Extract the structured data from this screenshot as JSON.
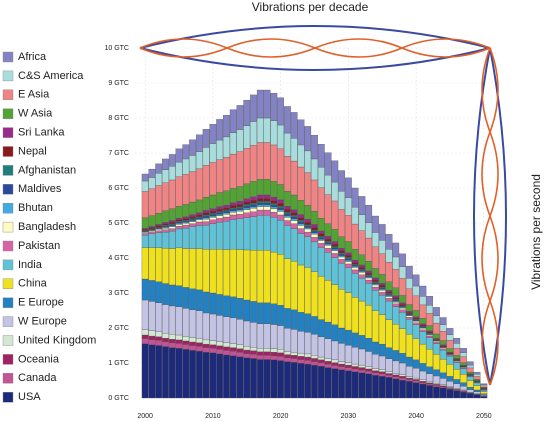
{
  "chart_data": {
    "type": "stacked-bar",
    "annotations": [
      "Vibrations per decade",
      "Vibrations per second"
    ],
    "x": [
      2000,
      2001,
      2002,
      2003,
      2004,
      2005,
      2006,
      2007,
      2008,
      2009,
      2010,
      2011,
      2012,
      2013,
      2014,
      2015,
      2016,
      2017,
      2018,
      2019,
      2020,
      2021,
      2022,
      2023,
      2024,
      2025,
      2026,
      2027,
      2028,
      2029,
      2030,
      2031,
      2032,
      2033,
      2034,
      2035,
      2036,
      2037,
      2038,
      2039,
      2040,
      2041,
      2042,
      2043,
      2044,
      2045,
      2046,
      2047,
      2048,
      2049,
      2050
    ],
    "xlim": [
      1998.5,
      2051.5
    ],
    "xticks": [
      2000,
      2010,
      2020,
      2030,
      2040,
      2050
    ],
    "ylim": [
      0,
      10
    ],
    "yticks": [
      {
        "value": 0,
        "label": "0 GTC"
      },
      {
        "value": 1,
        "label": "1 GTC"
      },
      {
        "value": 2,
        "label": "2 GTC"
      },
      {
        "value": 3,
        "label": "3 GTC"
      },
      {
        "value": 4,
        "label": "4 GTC"
      },
      {
        "value": 5,
        "label": "5 GTC"
      },
      {
        "value": 6,
        "label": "6 GTC"
      },
      {
        "value": 7,
        "label": "7 GTC"
      },
      {
        "value": 8,
        "label": "8 GTC"
      },
      {
        "value": 9,
        "label": "9 GTC"
      },
      {
        "value": 10,
        "label": "10 GTC"
      }
    ],
    "grid": true,
    "legend": "left",
    "series": [
      {
        "name": "Africa",
        "color": "#8383c4",
        "values": [
          0.2,
          0.24,
          0.27,
          0.31,
          0.34,
          0.38,
          0.41,
          0.45,
          0.48,
          0.52,
          0.55,
          0.59,
          0.62,
          0.66,
          0.69,
          0.73,
          0.76,
          0.8,
          0.8,
          0.79,
          0.78,
          0.76,
          0.74,
          0.72,
          0.7,
          0.68,
          0.66,
          0.64,
          0.61,
          0.59,
          0.57,
          0.55,
          0.52,
          0.5,
          0.47,
          0.45,
          0.43,
          0.4,
          0.37,
          0.35,
          0.32,
          0.29,
          0.26,
          0.24,
          0.21,
          0.18,
          0.15,
          0.13,
          0.1,
          0.06,
          0.03
        ]
      },
      {
        "name": "C&S America",
        "color": "#a9dcdc",
        "values": [
          0.3,
          0.32,
          0.35,
          0.37,
          0.39,
          0.42,
          0.44,
          0.46,
          0.49,
          0.51,
          0.54,
          0.56,
          0.58,
          0.61,
          0.63,
          0.65,
          0.68,
          0.7,
          0.7,
          0.69,
          0.68,
          0.66,
          0.65,
          0.63,
          0.62,
          0.6,
          0.58,
          0.56,
          0.54,
          0.52,
          0.5,
          0.48,
          0.46,
          0.44,
          0.41,
          0.39,
          0.37,
          0.35,
          0.33,
          0.3,
          0.28,
          0.25,
          0.23,
          0.21,
          0.18,
          0.16,
          0.14,
          0.11,
          0.08,
          0.06,
          0.03
        ]
      },
      {
        "name": "E Asia",
        "color": "#f08484",
        "values": [
          0.75,
          0.77,
          0.79,
          0.8,
          0.82,
          0.84,
          0.86,
          0.87,
          0.89,
          0.91,
          0.93,
          0.94,
          0.96,
          0.98,
          1.0,
          1.01,
          1.03,
          1.05,
          1.05,
          1.04,
          1.02,
          1.0,
          0.97,
          0.95,
          0.93,
          0.89,
          0.87,
          0.83,
          0.81,
          0.78,
          0.75,
          0.72,
          0.69,
          0.66,
          0.62,
          0.59,
          0.56,
          0.53,
          0.49,
          0.45,
          0.42,
          0.38,
          0.35,
          0.31,
          0.27,
          0.24,
          0.2,
          0.17,
          0.12,
          0.08,
          0.04
        ]
      },
      {
        "name": "W Asia",
        "color": "#52a234",
        "values": [
          0.3,
          0.31,
          0.32,
          0.33,
          0.34,
          0.34,
          0.35,
          0.36,
          0.37,
          0.38,
          0.39,
          0.4,
          0.41,
          0.41,
          0.42,
          0.43,
          0.44,
          0.45,
          0.45,
          0.45,
          0.44,
          0.43,
          0.42,
          0.41,
          0.4,
          0.38,
          0.37,
          0.36,
          0.35,
          0.33,
          0.32,
          0.31,
          0.29,
          0.28,
          0.27,
          0.25,
          0.24,
          0.23,
          0.21,
          0.19,
          0.18,
          0.16,
          0.15,
          0.13,
          0.12,
          0.1,
          0.09,
          0.07,
          0.05,
          0.04,
          0.02
        ]
      },
      {
        "name": "Sri Lanka",
        "color": "#9a2a8c",
        "values": [
          0.03,
          0.03,
          0.04,
          0.04,
          0.05,
          0.05,
          0.05,
          0.06,
          0.06,
          0.07,
          0.07,
          0.08,
          0.08,
          0.08,
          0.09,
          0.09,
          0.1,
          0.1,
          0.1,
          0.1,
          0.1,
          0.09,
          0.09,
          0.09,
          0.09,
          0.09,
          0.08,
          0.08,
          0.08,
          0.07,
          0.07,
          0.07,
          0.07,
          0.06,
          0.06,
          0.06,
          0.05,
          0.05,
          0.05,
          0.04,
          0.04,
          0.04,
          0.03,
          0.03,
          0.03,
          0.02,
          0.02,
          0.02,
          0.01,
          0.01,
          0.01
        ]
      },
      {
        "name": "Nepal",
        "color": "#8a1a1c",
        "values": [
          0.03,
          0.03,
          0.04,
          0.04,
          0.04,
          0.04,
          0.05,
          0.05,
          0.05,
          0.06,
          0.06,
          0.06,
          0.06,
          0.07,
          0.07,
          0.07,
          0.08,
          0.08,
          0.08,
          0.08,
          0.08,
          0.08,
          0.07,
          0.07,
          0.07,
          0.07,
          0.07,
          0.06,
          0.06,
          0.06,
          0.06,
          0.05,
          0.05,
          0.05,
          0.05,
          0.05,
          0.04,
          0.04,
          0.04,
          0.03,
          0.03,
          0.03,
          0.03,
          0.02,
          0.02,
          0.02,
          0.02,
          0.01,
          0.01,
          0.01,
          0.01
        ]
      },
      {
        "name": "Afghanistan",
        "color": "#1f7f7c",
        "values": [
          0.02,
          0.02,
          0.02,
          0.03,
          0.03,
          0.03,
          0.03,
          0.03,
          0.03,
          0.04,
          0.04,
          0.04,
          0.04,
          0.04,
          0.04,
          0.05,
          0.05,
          0.05,
          0.05,
          0.05,
          0.05,
          0.05,
          0.05,
          0.05,
          0.04,
          0.04,
          0.04,
          0.04,
          0.04,
          0.04,
          0.04,
          0.03,
          0.03,
          0.03,
          0.03,
          0.03,
          0.03,
          0.03,
          0.02,
          0.02,
          0.02,
          0.02,
          0.02,
          0.01,
          0.01,
          0.01,
          0.01,
          0.01,
          0.01,
          0.01,
          0.01
        ]
      },
      {
        "name": "Maldives",
        "color": "#2b4a9c",
        "values": [
          0.02,
          0.02,
          0.02,
          0.03,
          0.03,
          0.03,
          0.03,
          0.03,
          0.03,
          0.04,
          0.04,
          0.04,
          0.04,
          0.04,
          0.04,
          0.05,
          0.05,
          0.05,
          0.05,
          0.05,
          0.05,
          0.05,
          0.05,
          0.05,
          0.04,
          0.04,
          0.04,
          0.04,
          0.04,
          0.04,
          0.04,
          0.03,
          0.03,
          0.03,
          0.03,
          0.03,
          0.03,
          0.03,
          0.02,
          0.02,
          0.02,
          0.02,
          0.02,
          0.01,
          0.01,
          0.01,
          0.01,
          0.01,
          0.01,
          0.01,
          0.01
        ]
      },
      {
        "name": "Bhutan",
        "color": "#3eace0",
        "values": [
          0.02,
          0.02,
          0.02,
          0.03,
          0.03,
          0.03,
          0.03,
          0.03,
          0.03,
          0.04,
          0.04,
          0.04,
          0.04,
          0.04,
          0.04,
          0.05,
          0.05,
          0.05,
          0.05,
          0.05,
          0.05,
          0.05,
          0.05,
          0.05,
          0.04,
          0.04,
          0.04,
          0.04,
          0.04,
          0.04,
          0.04,
          0.03,
          0.03,
          0.03,
          0.03,
          0.03,
          0.03,
          0.03,
          0.02,
          0.02,
          0.02,
          0.02,
          0.02,
          0.01,
          0.01,
          0.01,
          0.01,
          0.01,
          0.01,
          0.01,
          0.01
        ]
      },
      {
        "name": "Bangladesh",
        "color": "#fdfac2",
        "values": [
          0.03,
          0.03,
          0.04,
          0.04,
          0.05,
          0.05,
          0.05,
          0.06,
          0.06,
          0.07,
          0.07,
          0.08,
          0.08,
          0.08,
          0.09,
          0.09,
          0.1,
          0.1,
          0.1,
          0.1,
          0.1,
          0.09,
          0.09,
          0.09,
          0.09,
          0.09,
          0.08,
          0.08,
          0.08,
          0.07,
          0.07,
          0.07,
          0.07,
          0.06,
          0.06,
          0.06,
          0.05,
          0.05,
          0.05,
          0.04,
          0.04,
          0.04,
          0.03,
          0.03,
          0.03,
          0.02,
          0.02,
          0.02,
          0.01,
          0.01,
          0.01
        ]
      },
      {
        "name": "Pakistan",
        "color": "#d663a6",
        "values": [
          0.05,
          0.06,
          0.06,
          0.07,
          0.07,
          0.08,
          0.09,
          0.09,
          0.1,
          0.1,
          0.11,
          0.11,
          0.12,
          0.13,
          0.13,
          0.14,
          0.14,
          0.15,
          0.15,
          0.15,
          0.15,
          0.14,
          0.14,
          0.14,
          0.13,
          0.13,
          0.12,
          0.12,
          0.12,
          0.11,
          0.11,
          0.1,
          0.1,
          0.09,
          0.09,
          0.08,
          0.08,
          0.08,
          0.07,
          0.06,
          0.06,
          0.05,
          0.05,
          0.04,
          0.04,
          0.03,
          0.03,
          0.02,
          0.02,
          0.01,
          0.01
        ]
      },
      {
        "name": "India",
        "color": "#5fc2d6",
        "values": [
          0.35,
          0.39,
          0.43,
          0.46,
          0.5,
          0.54,
          0.58,
          0.62,
          0.66,
          0.69,
          0.73,
          0.77,
          0.81,
          0.85,
          0.88,
          0.92,
          0.96,
          1.0,
          1.0,
          0.99,
          0.97,
          0.95,
          0.93,
          0.9,
          0.88,
          0.85,
          0.82,
          0.8,
          0.77,
          0.74,
          0.71,
          0.68,
          0.65,
          0.63,
          0.59,
          0.56,
          0.53,
          0.5,
          0.47,
          0.43,
          0.4,
          0.36,
          0.33,
          0.3,
          0.26,
          0.23,
          0.19,
          0.16,
          0.12,
          0.08,
          0.04
        ]
      },
      {
        "name": "China",
        "color": "#f0e11e",
        "values": [
          0.9,
          0.94,
          0.97,
          1.01,
          1.04,
          1.08,
          1.11,
          1.15,
          1.18,
          1.22,
          1.25,
          1.29,
          1.32,
          1.36,
          1.39,
          1.43,
          1.46,
          1.5,
          1.5,
          1.48,
          1.46,
          1.42,
          1.39,
          1.35,
          1.32,
          1.28,
          1.24,
          1.19,
          1.15,
          1.11,
          1.07,
          1.02,
          0.98,
          0.94,
          0.89,
          0.84,
          0.8,
          0.75,
          0.7,
          0.65,
          0.6,
          0.55,
          0.5,
          0.44,
          0.39,
          0.34,
          0.29,
          0.24,
          0.18,
          0.12,
          0.06
        ]
      },
      {
        "name": "E Europe",
        "color": "#2281c2",
        "values": [
          0.6,
          0.6,
          0.6,
          0.6,
          0.6,
          0.6,
          0.6,
          0.6,
          0.6,
          0.6,
          0.6,
          0.6,
          0.6,
          0.6,
          0.6,
          0.6,
          0.6,
          0.6,
          0.6,
          0.59,
          0.58,
          0.57,
          0.56,
          0.54,
          0.53,
          0.51,
          0.49,
          0.48,
          0.46,
          0.44,
          0.43,
          0.41,
          0.39,
          0.38,
          0.35,
          0.34,
          0.32,
          0.3,
          0.28,
          0.26,
          0.24,
          0.22,
          0.2,
          0.18,
          0.16,
          0.14,
          0.12,
          0.1,
          0.07,
          0.05,
          0.02
        ]
      },
      {
        "name": "W Europe",
        "color": "#c3c3e3",
        "values": [
          0.85,
          0.84,
          0.83,
          0.82,
          0.81,
          0.81,
          0.8,
          0.79,
          0.78,
          0.77,
          0.76,
          0.75,
          0.74,
          0.74,
          0.73,
          0.72,
          0.71,
          0.7,
          0.7,
          0.69,
          0.68,
          0.66,
          0.65,
          0.63,
          0.62,
          0.6,
          0.58,
          0.56,
          0.54,
          0.52,
          0.5,
          0.48,
          0.46,
          0.44,
          0.41,
          0.39,
          0.37,
          0.35,
          0.33,
          0.3,
          0.28,
          0.25,
          0.23,
          0.21,
          0.18,
          0.16,
          0.14,
          0.11,
          0.08,
          0.06,
          0.03
        ]
      },
      {
        "name": "United Kingdom",
        "color": "#d2e8d2",
        "values": [
          0.15,
          0.15,
          0.14,
          0.14,
          0.14,
          0.14,
          0.13,
          0.13,
          0.13,
          0.12,
          0.12,
          0.12,
          0.12,
          0.11,
          0.11,
          0.11,
          0.1,
          0.1,
          0.1,
          0.1,
          0.1,
          0.09,
          0.09,
          0.09,
          0.09,
          0.09,
          0.08,
          0.08,
          0.08,
          0.07,
          0.07,
          0.07,
          0.07,
          0.06,
          0.06,
          0.06,
          0.05,
          0.05,
          0.05,
          0.04,
          0.04,
          0.04,
          0.03,
          0.03,
          0.03,
          0.02,
          0.02,
          0.02,
          0.01,
          0.01,
          0.01
        ]
      },
      {
        "name": "Oceania",
        "color": "#a12262",
        "values": [
          0.1,
          0.1,
          0.1,
          0.1,
          0.1,
          0.1,
          0.1,
          0.1,
          0.1,
          0.1,
          0.1,
          0.1,
          0.1,
          0.1,
          0.1,
          0.1,
          0.1,
          0.1,
          0.1,
          0.1,
          0.1,
          0.09,
          0.09,
          0.09,
          0.09,
          0.09,
          0.08,
          0.08,
          0.08,
          0.07,
          0.07,
          0.07,
          0.07,
          0.06,
          0.06,
          0.06,
          0.05,
          0.05,
          0.05,
          0.04,
          0.04,
          0.04,
          0.03,
          0.03,
          0.03,
          0.02,
          0.02,
          0.02,
          0.01,
          0.01,
          0.01
        ]
      },
      {
        "name": "Canada",
        "color": "#c35394",
        "values": [
          0.15,
          0.15,
          0.15,
          0.14,
          0.14,
          0.14,
          0.14,
          0.14,
          0.14,
          0.13,
          0.13,
          0.13,
          0.13,
          0.13,
          0.13,
          0.12,
          0.12,
          0.12,
          0.12,
          0.12,
          0.12,
          0.11,
          0.11,
          0.11,
          0.11,
          0.1,
          0.1,
          0.1,
          0.09,
          0.09,
          0.09,
          0.08,
          0.08,
          0.08,
          0.07,
          0.07,
          0.06,
          0.06,
          0.06,
          0.05,
          0.05,
          0.04,
          0.04,
          0.04,
          0.03,
          0.03,
          0.02,
          0.02,
          0.01,
          0.01,
          0.01
        ]
      },
      {
        "name": "USA",
        "color": "#1d2a79",
        "values": [
          1.55,
          1.52,
          1.5,
          1.47,
          1.44,
          1.42,
          1.39,
          1.36,
          1.34,
          1.31,
          1.29,
          1.26,
          1.23,
          1.21,
          1.18,
          1.15,
          1.13,
          1.1,
          1.1,
          1.09,
          1.07,
          1.04,
          1.02,
          0.99,
          0.97,
          0.94,
          0.91,
          0.87,
          0.84,
          0.81,
          0.78,
          0.75,
          0.72,
          0.69,
          0.65,
          0.62,
          0.59,
          0.55,
          0.51,
          0.48,
          0.44,
          0.4,
          0.36,
          0.32,
          0.29,
          0.25,
          0.21,
          0.17,
          0.13,
          0.09,
          0.04
        ]
      }
    ]
  }
}
